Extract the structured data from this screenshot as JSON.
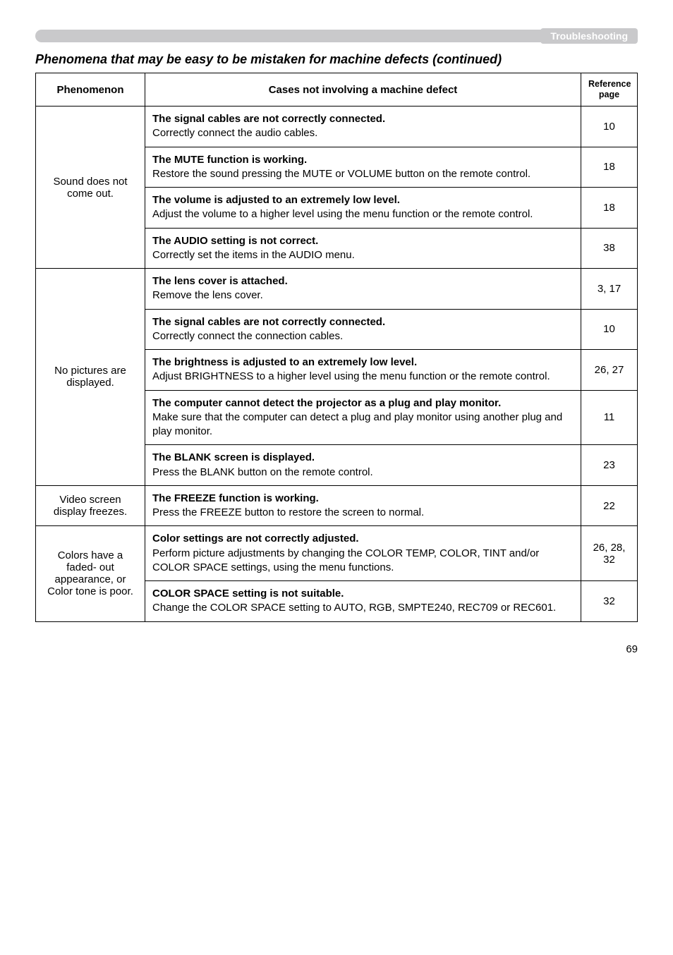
{
  "banner_label": "Troubleshooting",
  "section_title": "Phenomena that may be easy to be mistaken for machine defects (continued)",
  "headers": {
    "phenomenon": "Phenomenon",
    "cases": "Cases not involving a machine defect",
    "ref_l1": "Reference",
    "ref_l2": "page"
  },
  "groups": [
    {
      "phenomenon": "Sound does not come out.",
      "rows": [
        {
          "bold": "The signal cables are not correctly connected.",
          "body": "Correctly connect the audio cables.",
          "ref": "10"
        },
        {
          "bold": "The MUTE function is working.",
          "body": "Restore the sound pressing the MUTE or VOLUME button on the remote control.",
          "ref": "18"
        },
        {
          "bold": "The volume is adjusted to an extremely low level.",
          "body": "Adjust the volume to a higher level using the menu function or the remote control.",
          "ref": "18"
        },
        {
          "bold": "The AUDIO setting is not correct.",
          "body": "Correctly set the items in the AUDIO menu.",
          "ref": "38"
        }
      ]
    },
    {
      "phenomenon": "No pictures are displayed.",
      "rows": [
        {
          "bold": "The lens cover is attached.",
          "body": "Remove the lens cover.",
          "ref": "3, 17"
        },
        {
          "bold": "The signal cables are not correctly connected.",
          "body": "Correctly connect the connection cables.",
          "ref": "10"
        },
        {
          "bold": "The brightness is adjusted to an extremely low level.",
          "body": "Adjust BRIGHTNESS to a higher level using the menu function or the remote control.",
          "ref": "26, 27"
        },
        {
          "bold": "The computer cannot detect the projector as a plug and play monitor.",
          "body": "Make sure that the computer can detect a plug and play monitor using another plug and play monitor.",
          "ref": "11"
        },
        {
          "bold": "The BLANK screen is displayed.",
          "body": "Press the BLANK button on the remote control.",
          "ref": "23"
        }
      ]
    },
    {
      "phenomenon": "Video screen display freezes.",
      "rows": [
        {
          "bold": "The FREEZE function is working.",
          "body": "Press the FREEZE button to restore the screen to normal.",
          "ref": "22"
        }
      ]
    },
    {
      "phenomenon": "Colors have a faded- out appearance, or Color tone is poor.",
      "rows": [
        {
          "bold": "Color settings are not correctly adjusted.",
          "body": "Perform picture adjustments by changing the COLOR TEMP, COLOR, TINT and/or COLOR SPACE settings, using the menu functions.",
          "ref": "26, 28, 32"
        },
        {
          "bold": "COLOR SPACE setting is not suitable.",
          "body": "Change the COLOR SPACE setting to AUTO, RGB, SMPTE240, REC709 or REC601.",
          "ref": "32"
        }
      ]
    }
  ],
  "page_number": "69"
}
